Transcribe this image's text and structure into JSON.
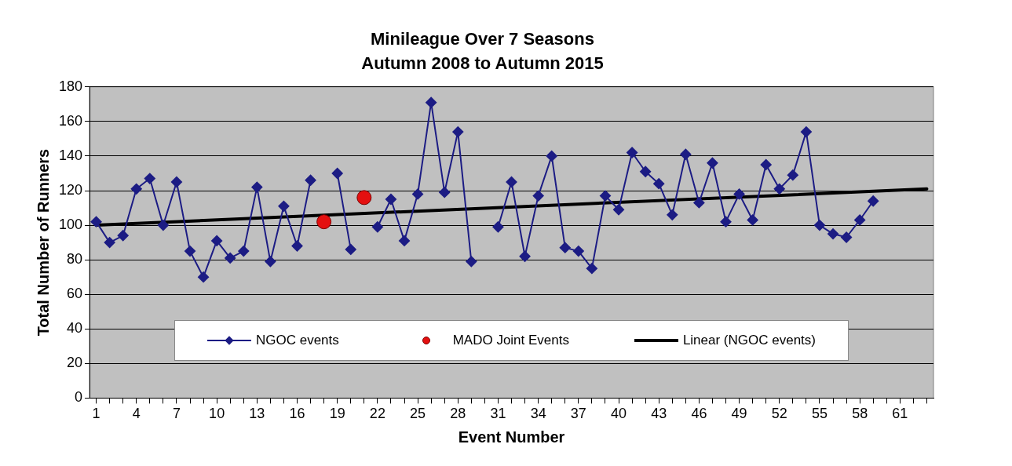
{
  "chart_data": {
    "type": "line",
    "title": "Minileague Over 7 Seasons",
    "subtitle": "Autumn 2008 to Autumn 2015",
    "xlabel": "Event Number",
    "ylabel": "Total Number of Runners",
    "xlim": [
      0.5,
      63.5
    ],
    "xticks": [
      1,
      {
        "value": 2,
        "label": null
      },
      {
        "value": 3,
        "label": null
      },
      4,
      {
        "value": 5,
        "label": null
      },
      {
        "value": 6,
        "label": null
      },
      7,
      {
        "value": 8,
        "label": null
      },
      {
        "value": 9,
        "label": null
      },
      10,
      {
        "value": 11,
        "label": null
      },
      {
        "value": 12,
        "label": null
      },
      13,
      {
        "value": 14,
        "label": null
      },
      {
        "value": 15,
        "label": null
      },
      16,
      {
        "value": 17,
        "label": null
      },
      {
        "value": 18,
        "label": null
      },
      19,
      {
        "value": 20,
        "label": null
      },
      {
        "value": 21,
        "label": null
      },
      22,
      {
        "value": 23,
        "label": null
      },
      {
        "value": 24,
        "label": null
      },
      25,
      {
        "value": 26,
        "label": null
      },
      {
        "value": 27,
        "label": null
      },
      28,
      {
        "value": 29,
        "label": null
      },
      {
        "value": 30,
        "label": null
      },
      31,
      {
        "value": 32,
        "label": null
      },
      {
        "value": 33,
        "label": null
      },
      34,
      {
        "value": 35,
        "label": null
      },
      {
        "value": 36,
        "label": null
      },
      37,
      {
        "value": 38,
        "label": null
      },
      {
        "value": 39,
        "label": null
      },
      40,
      {
        "value": 41,
        "label": null
      },
      {
        "value": 42,
        "label": null
      },
      43,
      {
        "value": 44,
        "label": null
      },
      {
        "value": 45,
        "label": null
      },
      46,
      {
        "value": 47,
        "label": null
      },
      {
        "value": 48,
        "label": null
      },
      49,
      {
        "value": 50,
        "label": null
      },
      {
        "value": 51,
        "label": null
      },
      52,
      {
        "value": 53,
        "label": null
      },
      {
        "value": 54,
        "label": null
      },
      55,
      {
        "value": 56,
        "label": null
      },
      {
        "value": 57,
        "label": null
      },
      58,
      {
        "value": 59,
        "label": null
      },
      {
        "value": 60,
        "label": null
      },
      61,
      {
        "value": 62,
        "label": null
      },
      {
        "value": 63,
        "label": null
      }
    ],
    "ylim": [
      0,
      180
    ],
    "yticks": [
      0,
      20,
      40,
      60,
      80,
      100,
      120,
      140,
      160,
      180
    ],
    "grid": "y",
    "legend": "bottom",
    "series": [
      {
        "name": "NGOC events",
        "type": "line",
        "color": "#1c1c84",
        "marker": "diamond",
        "x": [
          1,
          2,
          3,
          4,
          5,
          6,
          7,
          8,
          9,
          10,
          11,
          12,
          13,
          14,
          15,
          16,
          17,
          18,
          19,
          20,
          21,
          22,
          23,
          24,
          25,
          26,
          27,
          28,
          29,
          30,
          31,
          32,
          33,
          34,
          35,
          36,
          37,
          38,
          39,
          40,
          41,
          42,
          43,
          44,
          45,
          46,
          47,
          48,
          49,
          50,
          51,
          52,
          53,
          54,
          55,
          56,
          57,
          58,
          59
        ],
        "values": [
          102,
          90,
          94,
          121,
          127,
          100,
          125,
          85,
          70,
          91,
          81,
          85,
          122,
          79,
          111,
          88,
          126,
          null,
          130,
          86,
          null,
          99,
          115,
          91,
          118,
          171,
          119,
          154,
          79,
          null,
          99,
          125,
          82,
          117,
          140,
          87,
          85,
          75,
          117,
          109,
          142,
          131,
          124,
          106,
          141,
          113,
          136,
          102,
          118,
          103,
          135,
          121,
          129,
          154,
          100,
          95,
          93,
          103,
          114
        ]
      },
      {
        "name": "MADO Joint Events",
        "type": "scatter",
        "color": "#e41010",
        "marker": "circle",
        "x": [
          18,
          21
        ],
        "values": [
          102,
          116
        ]
      },
      {
        "name": "Linear (NGOC events)",
        "type": "line",
        "color": "#000000",
        "marker": "none",
        "line_style": "solid",
        "x": [
          1,
          63
        ],
        "values": [
          100,
          121
        ]
      }
    ]
  }
}
